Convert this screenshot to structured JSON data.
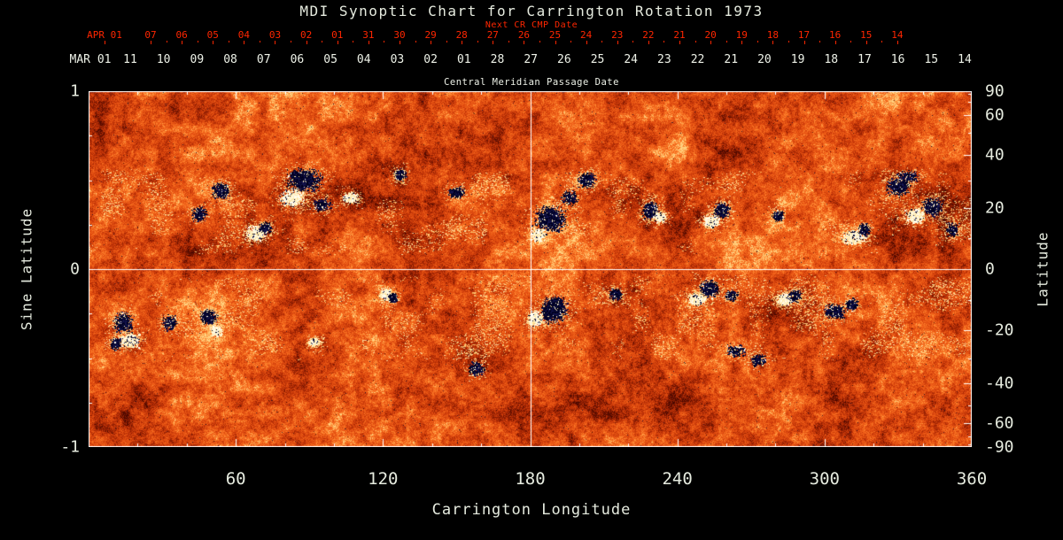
{
  "chart_data": {
    "type": "heatmap",
    "title": "MDI Synoptic Chart for Carrington Rotation 1973",
    "top_axis_red": {
      "label": "Next CR CMP Date",
      "month_label": "APR 01",
      "day_ticks": [
        "07",
        "06",
        "05",
        "04",
        "03",
        "02",
        "01",
        "31",
        "30",
        "29",
        "28",
        "27",
        "26",
        "25",
        "24",
        "23",
        "22",
        "21",
        "20",
        "19",
        "18",
        "17",
        "16",
        "15",
        "14"
      ],
      "color": "#ff2600"
    },
    "top_axis_white": {
      "label": "Central Meridian Passage Date",
      "month_label": "MAR 01",
      "day_ticks": [
        "11",
        "10",
        "09",
        "08",
        "07",
        "06",
        "05",
        "04",
        "03",
        "02",
        "01",
        "28",
        "27",
        "26",
        "25",
        "24",
        "23",
        "22",
        "21",
        "20",
        "19",
        "18",
        "17",
        "16",
        "15",
        "14"
      ]
    },
    "bottom_axis": {
      "label": "Carrington Longitude",
      "ticks": [
        60,
        120,
        180,
        240,
        300,
        360
      ],
      "range": [
        0,
        360
      ],
      "minor_step": 20
    },
    "left_axis": {
      "label": "Sine Latitude",
      "ticks": [
        1,
        0,
        -1
      ],
      "range": [
        -1,
        1
      ]
    },
    "right_axis": {
      "label": "Latitude",
      "ticks": [
        90,
        60,
        40,
        20,
        0,
        -20,
        -40,
        -60,
        -90
      ],
      "scale": "sine"
    },
    "reference_lines": {
      "meridian_lon": 180,
      "equator_sine_lat": 0
    },
    "colors": {
      "background": "#000000",
      "quiet_sun": "#e04a12",
      "negative_polarity": "#000030",
      "positive_polarity": "#fff6da",
      "plage": "#ffd27e",
      "axis_text": "#e6ebdf",
      "red_axis": "#ff2600",
      "frame": "#ffffff"
    },
    "active_regions_columns": [
      "carrington_lon_deg",
      "sine_latitude",
      "width_deg",
      "height_sine_lat",
      "polarity",
      "strength"
    ],
    "active_regions": [
      [
        88,
        0.5,
        9,
        0.08,
        -1,
        3
      ],
      [
        83,
        0.4,
        6,
        0.06,
        1,
        2
      ],
      [
        95,
        0.36,
        5,
        0.05,
        -1,
        1
      ],
      [
        107,
        0.4,
        4,
        0.04,
        1,
        1
      ],
      [
        127,
        0.53,
        3,
        0.04,
        -1,
        1
      ],
      [
        54,
        0.44,
        4,
        0.05,
        -1,
        2
      ],
      [
        45,
        0.31,
        4,
        0.05,
        -1,
        1
      ],
      [
        68,
        0.2,
        5,
        0.05,
        1,
        2
      ],
      [
        72,
        0.23,
        3,
        0.04,
        -1,
        1
      ],
      [
        150,
        0.43,
        4,
        0.04,
        -1,
        1
      ],
      [
        188,
        0.28,
        8,
        0.09,
        -1,
        3
      ],
      [
        183,
        0.19,
        4,
        0.05,
        1,
        1
      ],
      [
        196,
        0.4,
        4,
        0.05,
        -1,
        1
      ],
      [
        203,
        0.5,
        4,
        0.05,
        -1,
        2
      ],
      [
        229,
        0.33,
        4,
        0.06,
        -1,
        2
      ],
      [
        233,
        0.29,
        3,
        0.04,
        1,
        1
      ],
      [
        258,
        0.33,
        4,
        0.05,
        -1,
        2
      ],
      [
        254,
        0.27,
        4,
        0.04,
        1,
        2
      ],
      [
        281,
        0.3,
        3,
        0.04,
        -1,
        1
      ],
      [
        312,
        0.18,
        6,
        0.05,
        1,
        2
      ],
      [
        316,
        0.22,
        3,
        0.04,
        -1,
        1
      ],
      [
        330,
        0.46,
        6,
        0.06,
        -1,
        2
      ],
      [
        344,
        0.35,
        5,
        0.06,
        -1,
        2
      ],
      [
        337,
        0.3,
        5,
        0.05,
        1,
        2
      ],
      [
        334,
        0.52,
        6,
        0.04,
        -1,
        1
      ],
      [
        352,
        0.22,
        3,
        0.05,
        -1,
        1
      ],
      [
        14,
        -0.3,
        5,
        0.07,
        -1,
        2
      ],
      [
        17,
        -0.4,
        5,
        0.05,
        1,
        2
      ],
      [
        11,
        -0.42,
        3,
        0.04,
        -1,
        1
      ],
      [
        33,
        -0.3,
        4,
        0.05,
        -1,
        1
      ],
      [
        49,
        -0.27,
        4,
        0.05,
        -1,
        2
      ],
      [
        52,
        -0.35,
        3,
        0.04,
        1,
        1
      ],
      [
        92,
        -0.41,
        2.5,
        0.03,
        1,
        1
      ],
      [
        121,
        -0.14,
        3,
        0.04,
        1,
        1
      ],
      [
        124,
        -0.16,
        2,
        0.03,
        -1,
        1
      ],
      [
        190,
        -0.23,
        7,
        0.09,
        -1,
        3
      ],
      [
        182,
        -0.28,
        4,
        0.05,
        1,
        2
      ],
      [
        215,
        -0.14,
        3,
        0.04,
        -1,
        1
      ],
      [
        253,
        -0.11,
        5,
        0.06,
        -1,
        2
      ],
      [
        248,
        -0.17,
        4,
        0.04,
        1,
        2
      ],
      [
        262,
        -0.15,
        3,
        0.04,
        -1,
        1
      ],
      [
        284,
        -0.17,
        4,
        0.04,
        1,
        2
      ],
      [
        288,
        -0.15,
        3,
        0.04,
        -1,
        1
      ],
      [
        304,
        -0.24,
        5,
        0.05,
        -1,
        2
      ],
      [
        311,
        -0.2,
        3,
        0.04,
        -1,
        1
      ],
      [
        264,
        -0.46,
        5,
        0.04,
        -1,
        1
      ],
      [
        273,
        -0.51,
        4,
        0.04,
        -1,
        1
      ],
      [
        158,
        -0.56,
        4,
        0.05,
        -1,
        1
      ]
    ]
  }
}
